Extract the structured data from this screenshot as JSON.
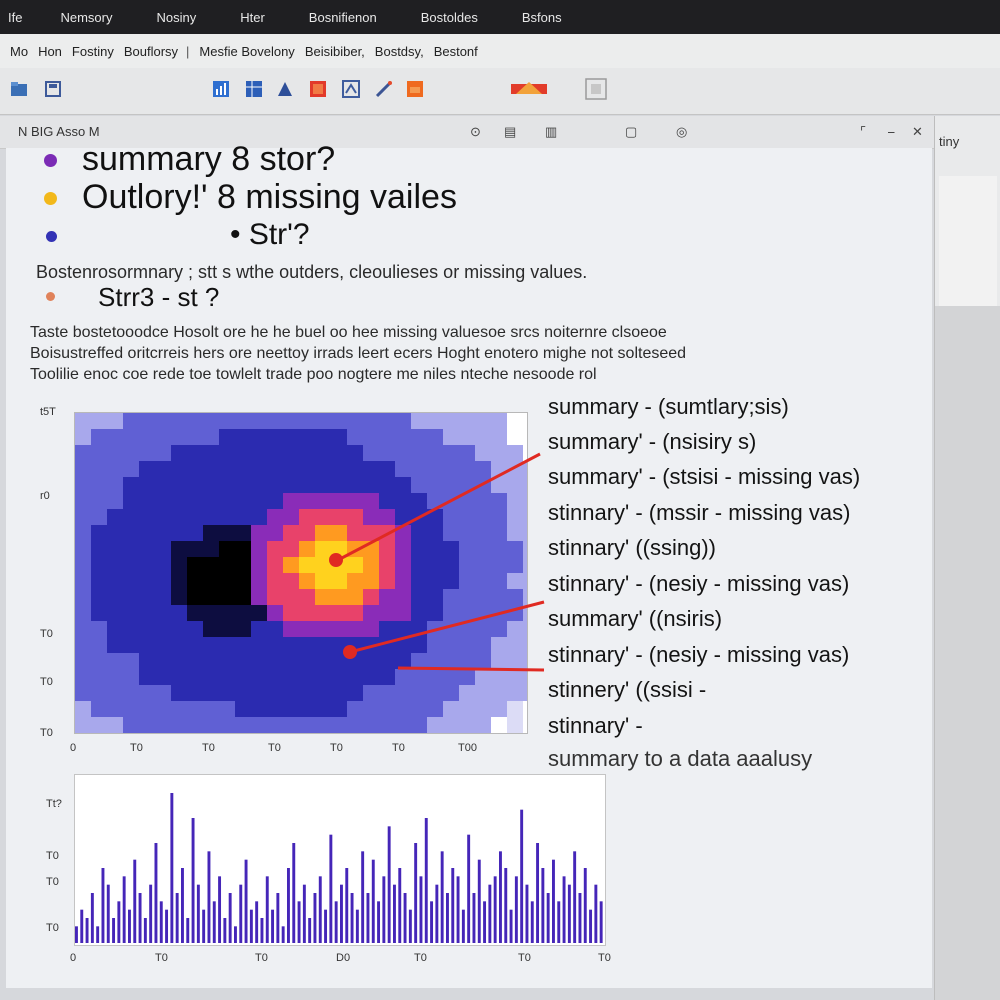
{
  "menubar": [
    "Ife",
    "Nemsory",
    "Nosiny",
    "Hter",
    "Bosnifienon",
    "Bostoldes",
    "Bsfons"
  ],
  "breadcrumb": [
    "Mo",
    "Hon",
    "Fostiny",
    "Bouflorsy",
    "Mesfie Bovelony",
    "Beisibiber,",
    "Bostdsy,",
    "Bestonf"
  ],
  "toolbar": {
    "icons": [
      "folder-icon",
      "save-icon",
      "chart-icon",
      "table-icon",
      "export-icon",
      "image-icon",
      "share-icon",
      "highlight-icon",
      "plot-icon",
      "sync-icon"
    ]
  },
  "pane": {
    "title": "N  BIG  Asso  M",
    "side_title": "tiny"
  },
  "doc": {
    "bullets": [
      {
        "text": "summary  8  stor?",
        "color": "#7b2bb5"
      },
      {
        "text": "Outlory!'  8  missing vailes",
        "color": "#f2b81a"
      },
      {
        "text": "•  Str'?",
        "color": "#3232b5"
      }
    ],
    "para1": "Bostenrosormnary ; stt  s wthe  outders, cleoulieses or missing values.",
    "sub_bullet": {
      "text": "Strr3     -  st  ?",
      "color": "#e0825a"
    },
    "para2": [
      "Taste  bostetooodce Hosolt  ore he  he  buel  oo hee  missing valuesoe  srcs  noiternre clsoeoe",
      "Boisustreffed oritcrreis hers  ore  neettoy  irrads  leert ecers  Hoght  enotero  mighe  not solteseed",
      "Toolilie enoc coe rede  toe towlelt trade  poo  nogtere  me  niles  nteche nesoode  rol"
    ]
  },
  "chart_data": [
    {
      "type": "heatmap",
      "title": "",
      "xlabel": "",
      "ylabel": "",
      "x_ticks": [
        "0",
        "T0",
        "T0",
        "T0",
        "T0",
        "T0",
        "T00"
      ],
      "y_ticks": [
        "t5T",
        "r0",
        "T0",
        "T0",
        "T0",
        "T0"
      ],
      "hotspot": {
        "x": 0.57,
        "y": 0.48,
        "intensity": 1.0
      },
      "colors": [
        "#ffffff",
        "#c9c9f4",
        "#8585e0",
        "#2b2bb0",
        "#0d0d40",
        "#000000",
        "#8a2cb8",
        "#e03060",
        "#ff7a20",
        "#ffd21e"
      ]
    },
    {
      "type": "bar",
      "title": "",
      "xlabel": "",
      "ylabel": "",
      "x_ticks": [
        "0",
        "T0",
        "T0",
        "D0",
        "T0",
        "T0",
        "T0"
      ],
      "y_ticks": [
        "Tt?",
        "T0",
        "T0",
        "T0"
      ],
      "values": [
        2,
        4,
        3,
        6,
        2,
        9,
        7,
        3,
        5,
        8,
        4,
        10,
        6,
        3,
        7,
        12,
        5,
        4,
        18,
        6,
        9,
        3,
        15,
        7,
        4,
        11,
        5,
        8,
        3,
        6,
        2,
        7,
        10,
        4,
        5,
        3,
        8,
        4,
        6,
        2,
        9,
        12,
        5,
        7,
        3,
        6,
        8,
        4,
        13,
        5,
        7,
        9,
        6,
        4,
        11,
        6,
        10,
        5,
        8,
        14,
        7,
        9,
        6,
        4,
        12,
        8,
        15,
        5,
        7,
        11,
        6,
        9,
        8,
        4,
        13,
        6,
        10,
        5,
        7,
        8,
        11,
        9,
        4,
        8,
        16,
        7,
        5,
        12,
        9,
        6,
        10,
        5,
        8,
        7,
        11,
        6,
        9,
        4,
        7,
        5
      ],
      "color": "#4526b8"
    }
  ],
  "annotations": {
    "lines": [
      "summary - (sumtlary;sis)",
      "summary' - (nsisiry s)",
      "summary' - (stsisi -  missing vas)",
      "stinnary' - (mssir - missing vas)",
      "stinnary' ((ssing))",
      "stinnary' - (nesiy - missing vas)",
      "summary' ((nsiris)",
      "stinnary' - (nesiy - missing vas)",
      "stinnery' ((ssisi -",
      "stinnary' -",
      "summary to a data aaalusy"
    ],
    "arrow_color": "#e02a22"
  }
}
